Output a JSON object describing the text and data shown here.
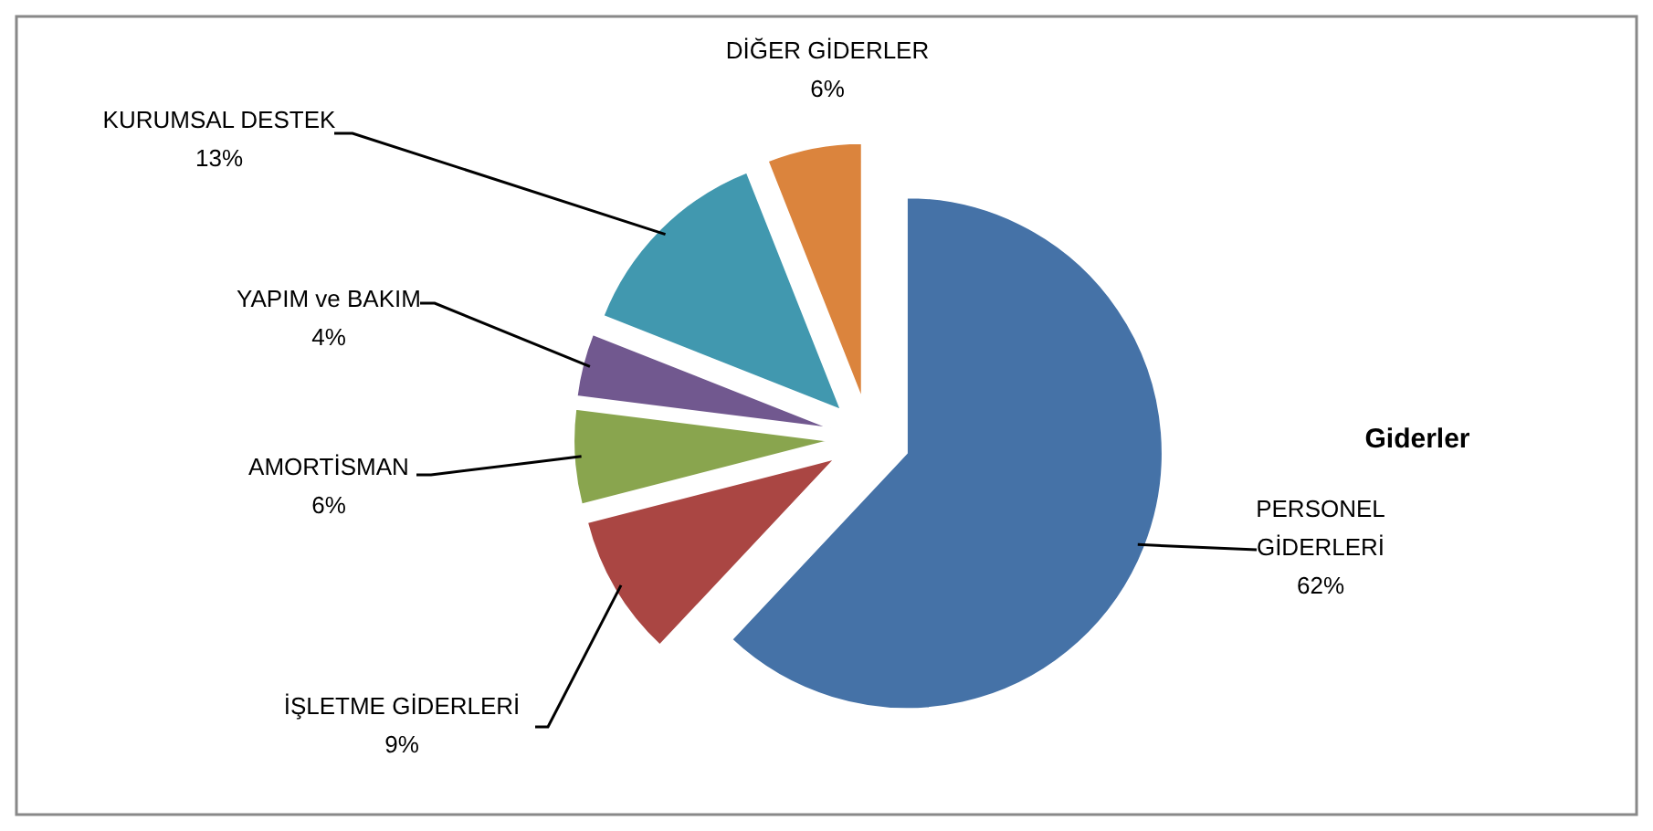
{
  "chart_data": {
    "type": "pie",
    "title": "Giderler",
    "categories": [
      "PERSONEL GİDERLERİ",
      "İŞLETME GİDERLERİ",
      "AMORTİSMAN",
      "YAPIM ve BAKIM",
      "KURUMSAL DESTEK",
      "DİĞER GİDERLER"
    ],
    "values": [
      62,
      9,
      6,
      4,
      13,
      6
    ],
    "value_labels": [
      "62%",
      "9%",
      "6%",
      "4%",
      "13%",
      "6%"
    ],
    "colors": [
      "#4572a7",
      "#aa4643",
      "#89a54e",
      "#71588f",
      "#4198af",
      "#db843d"
    ]
  }
}
